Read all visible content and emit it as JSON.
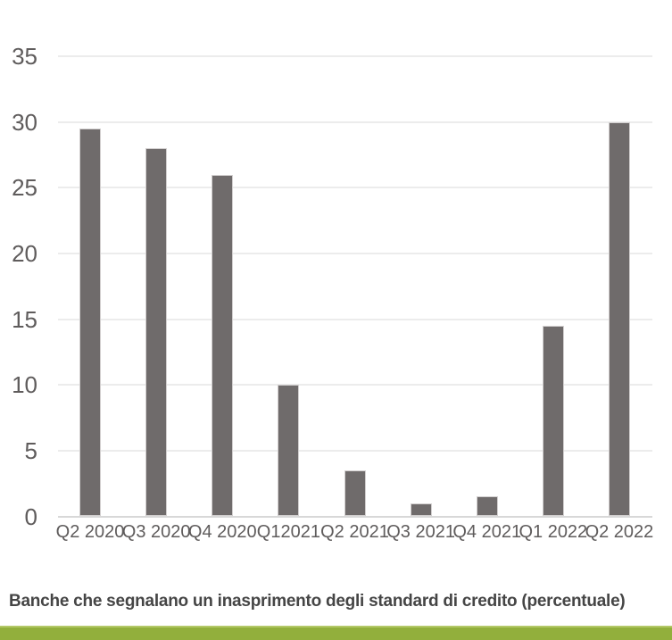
{
  "chart_data": {
    "type": "bar",
    "categories": [
      "Q2 2020",
      "Q3 2020",
      "Q4 2020",
      "Q12021",
      "Q2 2021",
      "Q3 2021",
      "Q4 2021",
      "Q1 2022",
      "Q2 2022"
    ],
    "values": [
      29.5,
      28,
      26,
      10,
      3.5,
      1,
      1.5,
      14.5,
      30
    ],
    "title": "",
    "xlabel": "",
    "ylabel": "",
    "ylim": [
      0,
      35
    ],
    "yticks": [
      0,
      5,
      10,
      15,
      20,
      25,
      30,
      35
    ],
    "grid": true,
    "legend": "none",
    "caption": "Banche che segnalano un inasprimento degli standard di credito (percentuale)",
    "colors": {
      "bar": "#6f6b6b",
      "bar_border": "#d2cfcf",
      "gridline": "#ececec",
      "axis_line": "#d8d8d8",
      "tick_label": "#5f5c5c",
      "caption_text": "#454545",
      "accent_bar": "#92af3c",
      "accent_bar_top": "#b3c868"
    }
  }
}
